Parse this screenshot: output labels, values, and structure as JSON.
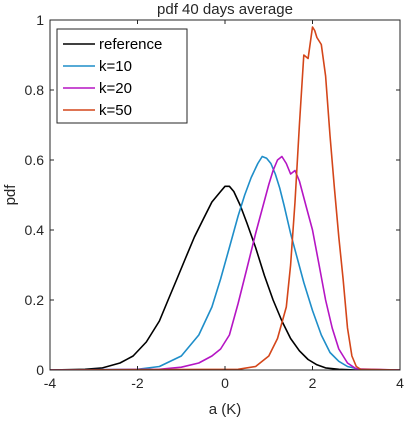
{
  "chart_data": {
    "type": "line",
    "title": "pdf 40 days average",
    "xlabel": "a (K)",
    "ylabel": "pdf",
    "xlim": [
      -4,
      4
    ],
    "ylim": [
      0,
      1
    ],
    "xticks": [
      "-4",
      "-2",
      "0",
      "2",
      "4"
    ],
    "yticks": [
      "0",
      "0.2",
      "0.4",
      "0.6",
      "0.8",
      "1"
    ],
    "grid": false,
    "legend_position": "top-left",
    "series": [
      {
        "name": "reference",
        "color": "#000000",
        "x": [
          -4,
          -3.2,
          -2.8,
          -2.4,
          -2.1,
          -1.8,
          -1.5,
          -1.3,
          -1.1,
          -0.9,
          -0.7,
          -0.5,
          -0.3,
          -0.1,
          0.0,
          0.1,
          0.2,
          0.35,
          0.5,
          0.7,
          0.9,
          1.1,
          1.3,
          1.5,
          1.7,
          1.9,
          2.1,
          2.3,
          2.6,
          3.0,
          3.5,
          4.0
        ],
        "y": [
          0,
          0.002,
          0.006,
          0.02,
          0.04,
          0.08,
          0.14,
          0.2,
          0.26,
          0.32,
          0.38,
          0.43,
          0.48,
          0.51,
          0.525,
          0.525,
          0.51,
          0.47,
          0.42,
          0.35,
          0.27,
          0.2,
          0.14,
          0.09,
          0.055,
          0.03,
          0.015,
          0.006,
          0.002,
          0,
          0,
          0
        ]
      },
      {
        "name": "k=10",
        "color": "#1f8ec9",
        "x": [
          -4,
          -2.0,
          -1.5,
          -1.0,
          -0.6,
          -0.3,
          -0.1,
          0.1,
          0.3,
          0.45,
          0.6,
          0.75,
          0.85,
          0.95,
          1.05,
          1.15,
          1.25,
          1.35,
          1.5,
          1.65,
          1.8,
          2.0,
          2.2,
          2.4,
          2.6,
          2.8,
          3.0,
          3.2,
          4.0
        ],
        "y": [
          0,
          0.002,
          0.01,
          0.04,
          0.1,
          0.18,
          0.26,
          0.35,
          0.44,
          0.5,
          0.55,
          0.59,
          0.61,
          0.605,
          0.59,
          0.56,
          0.52,
          0.47,
          0.39,
          0.32,
          0.25,
          0.17,
          0.1,
          0.05,
          0.025,
          0.01,
          0.004,
          0,
          0
        ]
      },
      {
        "name": "k=20",
        "color": "#b515c4",
        "x": [
          -4,
          -1.5,
          -1.0,
          -0.6,
          -0.3,
          -0.1,
          0.1,
          0.3,
          0.5,
          0.7,
          0.85,
          1.0,
          1.1,
          1.2,
          1.3,
          1.4,
          1.5,
          1.6,
          1.7,
          1.85,
          2.0,
          2.15,
          2.3,
          2.45,
          2.6,
          2.8,
          3.0,
          4.0
        ],
        "y": [
          0,
          0.002,
          0.008,
          0.02,
          0.04,
          0.06,
          0.1,
          0.19,
          0.29,
          0.39,
          0.46,
          0.53,
          0.57,
          0.6,
          0.61,
          0.59,
          0.56,
          0.57,
          0.54,
          0.47,
          0.4,
          0.3,
          0.2,
          0.12,
          0.06,
          0.02,
          0.003,
          0
        ]
      },
      {
        "name": "k=50",
        "color": "#d4461a",
        "x": [
          -4,
          0.3,
          0.7,
          1.0,
          1.2,
          1.4,
          1.5,
          1.6,
          1.7,
          1.8,
          1.9,
          2.0,
          2.05,
          2.1,
          2.2,
          2.3,
          2.4,
          2.5,
          2.6,
          2.7,
          2.8,
          2.9,
          3.0,
          3.1,
          4.0
        ],
        "y": [
          0,
          0.002,
          0.01,
          0.04,
          0.09,
          0.18,
          0.3,
          0.48,
          0.7,
          0.9,
          0.89,
          0.98,
          0.97,
          0.95,
          0.93,
          0.84,
          0.67,
          0.52,
          0.38,
          0.26,
          0.12,
          0.04,
          0.01,
          0.002,
          0
        ]
      }
    ]
  }
}
